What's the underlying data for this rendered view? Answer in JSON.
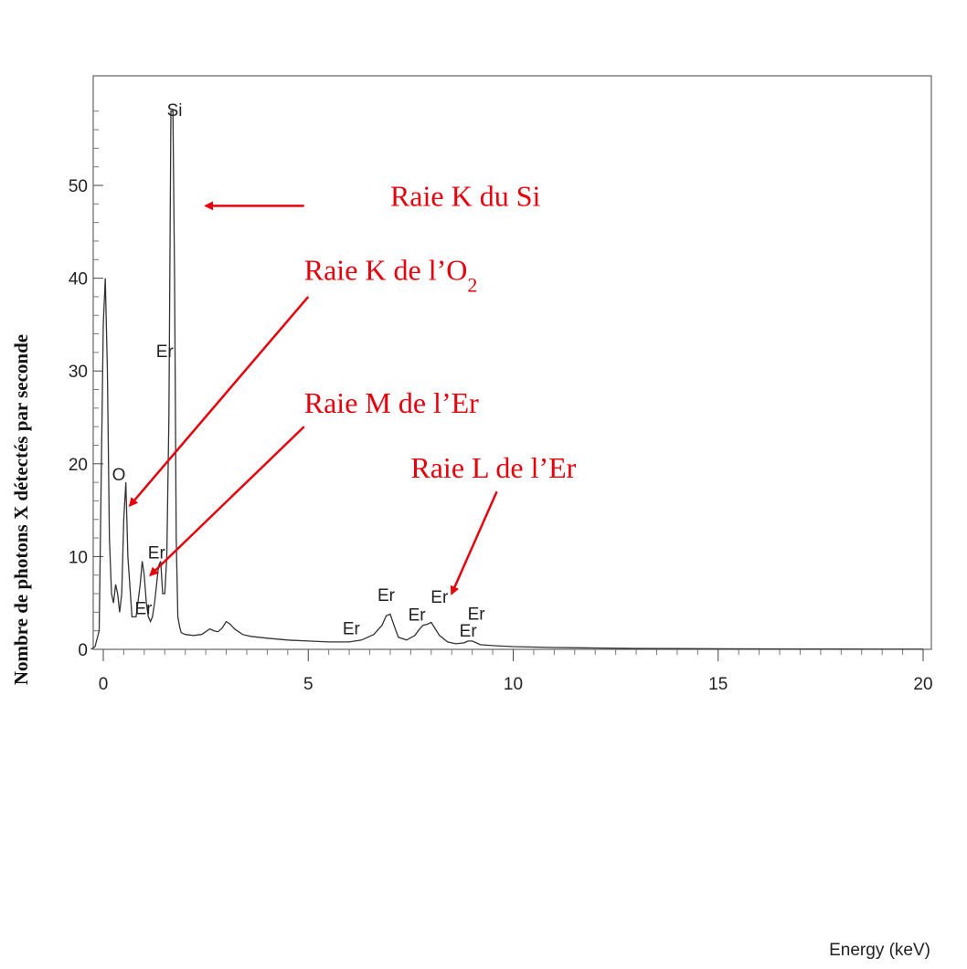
{
  "chart_data": {
    "type": "line",
    "title": "",
    "xlabel": "Energy (keV)",
    "ylabel": "Nombre de photons X détectés par seconde",
    "xlim": [
      -0.3,
      20.2
    ],
    "ylim": [
      0,
      58
    ],
    "x_ticks": [
      0,
      5,
      10,
      15,
      20
    ],
    "x_tick_labels": [
      "0",
      "5",
      "10",
      "15",
      "20"
    ],
    "y_ticks": [
      0,
      10,
      20,
      30,
      40,
      50
    ],
    "y_tick_labels": [
      "0",
      "10",
      "20",
      "30",
      "40",
      "50"
    ],
    "grid": false,
    "legend": "none",
    "series": [
      {
        "color": "#333333",
        "x": [
          -0.3,
          -0.2,
          -0.1,
          0.0,
          0.05,
          0.1,
          0.15,
          0.2,
          0.25,
          0.3,
          0.35,
          0.4,
          0.45,
          0.5,
          0.55,
          0.6,
          0.7,
          0.8,
          0.9,
          0.95,
          1.0,
          1.05,
          1.1,
          1.15,
          1.2,
          1.25,
          1.3,
          1.35,
          1.4,
          1.45,
          1.5,
          1.55,
          1.6,
          1.65,
          1.7,
          1.74,
          1.78,
          1.82,
          1.86,
          1.9,
          2.0,
          2.2,
          2.4,
          2.6,
          2.7,
          2.8,
          2.9,
          3.0,
          3.1,
          3.2,
          3.4,
          3.6,
          3.8,
          4.0,
          4.5,
          5.0,
          5.5,
          6.0,
          6.3,
          6.6,
          6.8,
          6.9,
          7.0,
          7.1,
          7.2,
          7.4,
          7.6,
          7.7,
          7.8,
          7.9,
          8.0,
          8.1,
          8.2,
          8.4,
          8.6,
          8.8,
          8.9,
          9.0,
          9.1,
          9.2,
          9.5,
          10.0,
          11.0,
          12.0,
          13.0,
          14.0,
          15.0,
          16.0,
          17.0,
          18.0,
          19.0,
          20.0
        ],
        "y": [
          0,
          0.3,
          2,
          35,
          40,
          30,
          12,
          6,
          5,
          7,
          6,
          4,
          6,
          14,
          18,
          10,
          3.5,
          3.5,
          7,
          9.5,
          8,
          5,
          3.5,
          3,
          3.5,
          5,
          7,
          9,
          9.5,
          6,
          6,
          10,
          25,
          58,
          58,
          40,
          12,
          3.5,
          2.5,
          1.8,
          1.6,
          1.5,
          1.6,
          2.2,
          2.0,
          1.9,
          2.3,
          3.0,
          2.7,
          2.2,
          1.6,
          1.4,
          1.3,
          1.2,
          1.0,
          0.9,
          0.8,
          0.8,
          1.0,
          1.6,
          2.6,
          3.6,
          3.8,
          2.5,
          1.3,
          1.0,
          1.5,
          2.1,
          2.6,
          2.7,
          2.9,
          2.2,
          1.5,
          0.8,
          0.6,
          0.7,
          0.9,
          0.9,
          0.7,
          0.5,
          0.4,
          0.3,
          0.2,
          0.15,
          0.1,
          0.08,
          0.06,
          0.05,
          0.04,
          0.03,
          0.02,
          0.02
        ]
      }
    ],
    "peak_labels": [
      {
        "text": "Si",
        "x": 1.74,
        "y": 57.5
      },
      {
        "text": "Er",
        "x": 1.5,
        "y": 31.5
      },
      {
        "text": "O",
        "x": 0.38,
        "y": 18.2
      },
      {
        "text": "Er",
        "x": 1.3,
        "y": 9.8
      },
      {
        "text": "Er",
        "x": 0.98,
        "y": 3.8
      },
      {
        "text": "Er",
        "x": 6.9,
        "y": 5.2
      },
      {
        "text": "Er",
        "x": 6.05,
        "y": 1.6
      },
      {
        "text": "Er",
        "x": 7.65,
        "y": 3.1
      },
      {
        "text": "Er",
        "x": 8.2,
        "y": 5.0
      },
      {
        "text": "Er",
        "x": 9.1,
        "y": 3.2
      },
      {
        "text": "Er",
        "x": 8.9,
        "y": 1.4
      }
    ],
    "annotations": [
      {
        "text": "Raie K du Si",
        "subscript": "",
        "x": 7.0,
        "y": 47.8,
        "arrow_from": [
          4.9,
          47.8
        ],
        "arrow_to": [
          2.5,
          47.8
        ]
      },
      {
        "text": "Raie K de l’O",
        "subscript": "2",
        "x": 4.9,
        "y": 39.8,
        "arrow_from": [
          5.0,
          38.0
        ],
        "arrow_to": [
          0.65,
          15.5
        ]
      },
      {
        "text": "Raie M de l’Er",
        "subscript": "",
        "x": 4.9,
        "y": 25.5,
        "arrow_from": [
          4.9,
          24.0
        ],
        "arrow_to": [
          1.15,
          8.0
        ]
      },
      {
        "text": "Raie L de l’Er",
        "subscript": "",
        "x": 7.5,
        "y": 18.5,
        "arrow_from": [
          9.6,
          17.0
        ],
        "arrow_to": [
          8.5,
          6.0
        ]
      }
    ],
    "colors": {
      "annotation": "#e8000b",
      "line": "#333333",
      "axis": "#444444"
    }
  }
}
